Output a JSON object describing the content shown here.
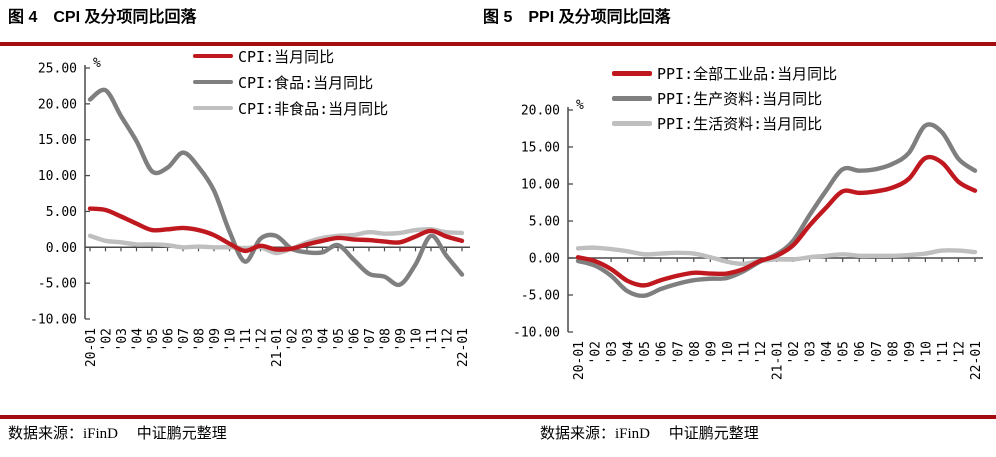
{
  "colors": {
    "rule": "#A30D0D",
    "series_red": "#C0181F",
    "series_dark_gray": "#7F7F7F",
    "series_light_gray": "#BFBFBF",
    "axis": "#4A4A4A",
    "text": "#000000",
    "background": "#FFFFFF"
  },
  "figures": [
    {
      "heading": "图 4　CPI 及分项同比回落",
      "source": "数据来源：iFinD　 中证鹏元整理"
    },
    {
      "heading": "图 5　PPI 及分项同比回落",
      "source": "数据来源：iFinD　 中证鹏元整理"
    }
  ],
  "chart_data": [
    {
      "type": "line",
      "title": "图 4 CPI 及分项同比回落",
      "ylabel": "%",
      "xlabel": "",
      "ylim": [
        -10,
        25
      ],
      "ystep": 5,
      "grid": false,
      "legend_position": "top-center",
      "x": [
        "20-01",
        "'02",
        "'03",
        "'04",
        "'05",
        "'06",
        "'07",
        "'08",
        "'09",
        "'10",
        "'11",
        "'12",
        "21-01",
        "'02",
        "'03",
        "'04",
        "'05",
        "'06",
        "'07",
        "'08",
        "'09",
        "'10",
        "'11",
        "'12",
        "22-01"
      ],
      "series": [
        {
          "name": "CPI:当月同比",
          "color": "#C0181F",
          "values": [
            5.4,
            5.2,
            4.3,
            3.3,
            2.4,
            2.5,
            2.7,
            2.4,
            1.7,
            0.5,
            -0.5,
            0.2,
            -0.3,
            -0.2,
            0.4,
            0.9,
            1.3,
            1.1,
            1.0,
            0.8,
            0.7,
            1.5,
            2.3,
            1.5,
            0.9
          ]
        },
        {
          "name": "CPI:食品:当月同比",
          "color": "#7F7F7F",
          "values": [
            20.6,
            21.9,
            18.3,
            14.8,
            10.6,
            11.1,
            13.2,
            11.2,
            7.9,
            2.2,
            -2.0,
            1.2,
            1.6,
            -0.2,
            -0.7,
            -0.7,
            0.3,
            -1.7,
            -3.7,
            -4.1,
            -5.2,
            -2.4,
            1.6,
            -1.2,
            -3.8
          ]
        },
        {
          "name": "CPI:非食品:当月同比",
          "color": "#BFBFBF",
          "values": [
            1.6,
            0.9,
            0.7,
            0.4,
            0.4,
            0.3,
            0.0,
            0.1,
            0.0,
            0.0,
            -0.1,
            0.0,
            -0.8,
            -0.2,
            0.7,
            1.3,
            1.6,
            1.7,
            2.1,
            1.9,
            2.0,
            2.4,
            2.5,
            2.1,
            2.0
          ]
        }
      ]
    },
    {
      "type": "line",
      "title": "图 5 PPI 及分项同比回落",
      "ylabel": "%",
      "xlabel": "",
      "ylim": [
        -10,
        20
      ],
      "ystep": 5,
      "grid": false,
      "legend_position": "top-center",
      "x": [
        "20-01",
        "'02",
        "'03",
        "'04",
        "'05",
        "'06",
        "'07",
        "'08",
        "'09",
        "'10",
        "'11",
        "'12",
        "21-01",
        "'02",
        "'03",
        "'04",
        "'05",
        "'06",
        "'07",
        "'08",
        "'09",
        "'10",
        "'11",
        "'12",
        "22-01"
      ],
      "series": [
        {
          "name": "PPI:全部工业品:当月同比",
          "color": "#C0181F",
          "values": [
            0.1,
            -0.4,
            -1.5,
            -3.1,
            -3.7,
            -3.0,
            -2.4,
            -2.0,
            -2.1,
            -2.1,
            -1.5,
            -0.4,
            0.3,
            1.7,
            4.4,
            6.8,
            9.0,
            8.8,
            9.0,
            9.5,
            10.7,
            13.5,
            12.9,
            10.3,
            9.1
          ]
        },
        {
          "name": "PPI:生产资料:当月同比",
          "color": "#7F7F7F",
          "values": [
            -0.4,
            -1.0,
            -2.4,
            -4.5,
            -5.1,
            -4.2,
            -3.5,
            -3.0,
            -2.8,
            -2.7,
            -1.8,
            -0.5,
            0.5,
            2.3,
            5.8,
            9.1,
            12.0,
            11.8,
            12.0,
            12.7,
            14.2,
            17.9,
            17.0,
            13.4,
            11.8
          ]
        },
        {
          "name": "PPI:生活资料:当月同比",
          "color": "#BFBFBF",
          "values": [
            1.3,
            1.4,
            1.2,
            0.9,
            0.5,
            0.6,
            0.7,
            0.6,
            0.1,
            -0.5,
            -0.8,
            -0.4,
            -0.2,
            -0.2,
            0.1,
            0.3,
            0.5,
            0.3,
            0.3,
            0.3,
            0.4,
            0.6,
            1.0,
            1.0,
            0.8
          ]
        }
      ]
    }
  ]
}
